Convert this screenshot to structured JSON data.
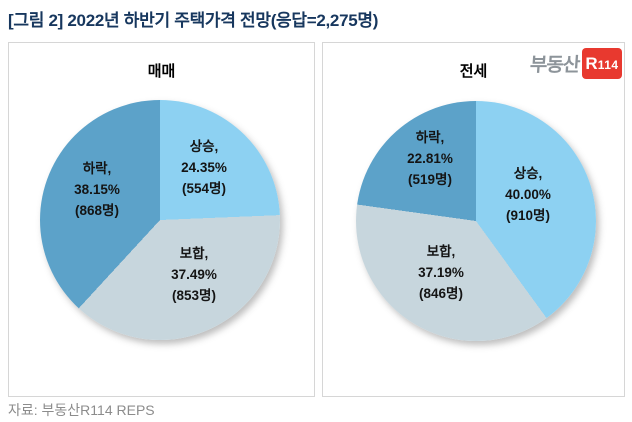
{
  "title": "[그림 2] 2022년 하반기 주택가격 전망(응답=2,275명)",
  "source": "자료: 부동산R114 REPS",
  "logo": {
    "prefix": "부동산",
    "badge_r": "R",
    "badge_num": "114"
  },
  "colors": {
    "rise": "#8DD1F2",
    "flat": "#C7D6DD",
    "fall": "#5CA2C9",
    "title": "#17375E",
    "logo_red": "#E8392F"
  },
  "chart_data": [
    {
      "type": "pie",
      "title": "매매",
      "start_angle_deg": 0,
      "direction": "clockwise",
      "legend_position": "none",
      "slices": [
        {
          "name": "상승",
          "percent": 24.35,
          "count": 554,
          "line1": "상승,",
          "line2": "24.35%",
          "line3": "(554명)",
          "color": "#8DD1F2"
        },
        {
          "name": "보합",
          "percent": 37.49,
          "count": 853,
          "line1": "보합,",
          "line2": "37.49%",
          "line3": "(853명)",
          "color": "#C7D6DD"
        },
        {
          "name": "하락",
          "percent": 38.15,
          "count": 868,
          "line1": "하락,",
          "line2": "38.15%",
          "line3": "(868명)",
          "color": "#5CA2C9"
        }
      ]
    },
    {
      "type": "pie",
      "title": "전세",
      "start_angle_deg": 0,
      "direction": "clockwise",
      "legend_position": "none",
      "slices": [
        {
          "name": "상승",
          "percent": 40.0,
          "count": 910,
          "line1": "상승,",
          "line2": "40.00%",
          "line3": "(910명)",
          "color": "#8DD1F2"
        },
        {
          "name": "보합",
          "percent": 37.19,
          "count": 846,
          "line1": "보합,",
          "line2": "37.19%",
          "line3": "(846명)",
          "color": "#C7D6DD"
        },
        {
          "name": "하락",
          "percent": 22.81,
          "count": 519,
          "line1": "하락,",
          "line2": "22.81%",
          "line3": "(519명)",
          "color": "#5CA2C9"
        }
      ]
    }
  ]
}
